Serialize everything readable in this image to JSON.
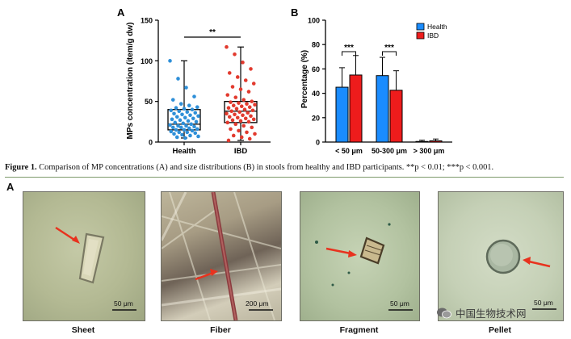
{
  "figure1": {
    "caption_label": "Figure 1.",
    "caption_text": " Comparison of MP concentrations (A) and size distributions (B) in stools from healthy and IBD participants. **p < 0.01; ***p < 0.001.",
    "panel_a": {
      "panel_letter": "A",
      "chart_data": {
        "type": "box",
        "ylabel": "MPs concentration (item/g dw)",
        "ylim": [
          0,
          150
        ],
        "yticks": [
          0,
          50,
          100,
          150
        ],
        "categories": [
          "Health",
          "IBD"
        ],
        "series": [
          {
            "name": "Health",
            "color": "#2e8fd8",
            "min": 5,
            "q1": 15,
            "median": 22,
            "q3": 40,
            "max": 100,
            "points": [
              100,
              78,
              67,
              56,
              52,
              47,
              45,
              43,
              42,
              41,
              40,
              39,
              38,
              37,
              36,
              35,
              34,
              33,
              32,
              31,
              30,
              29,
              28,
              27,
              26,
              25,
              24,
              23,
              22,
              21,
              20,
              20,
              19,
              18,
              18,
              17,
              16,
              15,
              15,
              14,
              13,
              12,
              12,
              11,
              10,
              9,
              8,
              7,
              6,
              5
            ]
          },
          {
            "name": "IBD",
            "color": "#e23a2e",
            "min": 2,
            "q1": 24,
            "median": 38,
            "q3": 50,
            "max": 117,
            "points": [
              117,
              108,
              98,
              90,
              85,
              80,
              76,
              72,
              68,
              65,
              62,
              58,
              55,
              52,
              50,
              49,
              48,
              47,
              46,
              45,
              44,
              43,
              42,
              41,
              40,
              39,
              38,
              37,
              36,
              35,
              34,
              33,
              32,
              31,
              30,
              29,
              28,
              27,
              26,
              25,
              24,
              22,
              20,
              18,
              16,
              14,
              12,
              10,
              8,
              6,
              4,
              2
            ]
          }
        ],
        "annotations": [
          {
            "text": "**",
            "between": [
              "Health",
              "IBD"
            ]
          }
        ]
      }
    },
    "panel_b": {
      "panel_letter": "B",
      "chart_data": {
        "type": "bar",
        "ylabel": "Percentage (%)",
        "ylim": [
          0,
          100
        ],
        "yticks": [
          0,
          20,
          40,
          60,
          80,
          100
        ],
        "categories": [
          "< 50 μm",
          "50-300 μm",
          "> 300 μm"
        ],
        "series": [
          {
            "name": "Health",
            "color": "#1a8cff",
            "values": [
              45,
              54.5,
              0.5
            ],
            "errors": [
              16,
              15,
              1
            ]
          },
          {
            "name": "IBD",
            "color": "#ee1c1c",
            "values": [
              55,
              42.5,
              1
            ],
            "errors": [
              16,
              16,
              1.5
            ]
          }
        ],
        "legend_position": "top-right",
        "annotations": [
          {
            "text": "***",
            "category": "< 50 μm"
          },
          {
            "text": "***",
            "category": "50-300 μm"
          }
        ]
      }
    }
  },
  "figure2": {
    "panel_letter": "A",
    "images": [
      {
        "label": "Sheet",
        "scale_bar": "50 μm"
      },
      {
        "label": "Fiber",
        "scale_bar": "200 μm"
      },
      {
        "label": "Fragment",
        "scale_bar": "50 μm"
      },
      {
        "label": "Pellet",
        "scale_bar": "50 μm"
      }
    ]
  },
  "watermark": {
    "text": "中国生物技术网",
    "icon": "wechat-icon"
  }
}
